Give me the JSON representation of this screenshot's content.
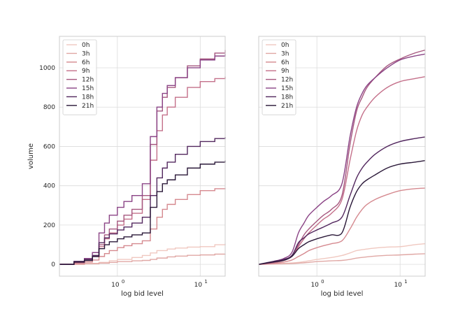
{
  "chart_data": [
    {
      "type": "line",
      "drawstyle": "steps",
      "xlabel": "log bid level",
      "ylabel": "volume",
      "xscale": "log",
      "xlim": [
        0.2,
        20
      ],
      "ylim": [
        -60,
        1160
      ],
      "xticks": [
        {
          "base": "10",
          "exp": "0",
          "value": 1
        },
        {
          "base": "10",
          "exp": "1",
          "value": 10
        }
      ],
      "yticks": [
        0,
        200,
        400,
        600,
        800,
        1000
      ],
      "grid": true,
      "legend_position": "top-left",
      "series": [
        {
          "name": "0h",
          "color": "#f0c8c0",
          "x": [
            0.2,
            0.4,
            0.6,
            0.8,
            1.0,
            1.5,
            2.0,
            2.5,
            3.0,
            4.0,
            5.0,
            7.0,
            10.0,
            15.0,
            20.0
          ],
          "y": [
            0,
            5,
            10,
            18,
            25,
            35,
            45,
            58,
            70,
            78,
            83,
            88,
            90,
            100,
            105
          ]
        },
        {
          "name": "3h",
          "color": "#e0a8a5",
          "x": [
            0.2,
            0.4,
            0.6,
            0.8,
            1.0,
            1.5,
            2.0,
            2.5,
            3.0,
            4.0,
            5.0,
            7.0,
            10.0,
            15.0,
            20.0
          ],
          "y": [
            0,
            3,
            6,
            10,
            14,
            18,
            20,
            25,
            32,
            38,
            42,
            46,
            48,
            52,
            54
          ]
        },
        {
          "name": "6h",
          "color": "#d5898f",
          "x": [
            0.2,
            0.3,
            0.4,
            0.5,
            0.6,
            0.7,
            0.8,
            1.0,
            1.2,
            1.5,
            2.0,
            2.5,
            3.0,
            3.5,
            4.0,
            5.0,
            7.0,
            10.0,
            15.0,
            20.0
          ],
          "y": [
            0,
            5,
            12,
            22,
            40,
            55,
            70,
            85,
            95,
            105,
            120,
            180,
            240,
            280,
            305,
            330,
            355,
            375,
            385,
            388
          ]
        },
        {
          "name": "9h",
          "color": "#c4708a",
          "x": [
            0.2,
            0.3,
            0.4,
            0.5,
            0.6,
            0.7,
            0.8,
            1.0,
            1.2,
            1.5,
            2.0,
            2.5,
            3.0,
            3.5,
            4.0,
            5.0,
            7.0,
            10.0,
            15.0,
            20.0
          ],
          "y": [
            0,
            8,
            20,
            40,
            90,
            130,
            160,
            200,
            230,
            260,
            330,
            530,
            680,
            760,
            800,
            850,
            900,
            930,
            945,
            955
          ]
        },
        {
          "name": "12h",
          "color": "#a6577f",
          "x": [
            0.2,
            0.3,
            0.4,
            0.5,
            0.6,
            0.7,
            0.8,
            1.0,
            1.2,
            1.5,
            2.0,
            2.5,
            3.0,
            3.5,
            4.0,
            5.0,
            7.0,
            10.0,
            15.0,
            20.0
          ],
          "y": [
            0,
            10,
            22,
            45,
            100,
            150,
            180,
            220,
            250,
            280,
            350,
            610,
            780,
            850,
            900,
            950,
            1010,
            1045,
            1075,
            1090
          ]
        },
        {
          "name": "15h",
          "color": "#8a4385",
          "x": [
            0.2,
            0.3,
            0.4,
            0.5,
            0.6,
            0.7,
            0.8,
            1.0,
            1.2,
            1.5,
            2.0,
            2.5,
            3.0,
            3.5,
            4.0,
            5.0,
            7.0,
            10.0,
            15.0,
            20.0
          ],
          "y": [
            0,
            15,
            30,
            60,
            160,
            210,
            250,
            290,
            320,
            350,
            410,
            650,
            800,
            870,
            910,
            950,
            1000,
            1040,
            1060,
            1070
          ]
        },
        {
          "name": "18h",
          "color": "#52275e",
          "x": [
            0.2,
            0.3,
            0.4,
            0.5,
            0.6,
            0.7,
            0.8,
            1.0,
            1.2,
            1.5,
            2.0,
            2.5,
            3.0,
            3.5,
            4.0,
            5.0,
            7.0,
            10.0,
            15.0,
            20.0
          ],
          "y": [
            0,
            15,
            25,
            45,
            110,
            135,
            155,
            175,
            190,
            210,
            240,
            350,
            440,
            490,
            520,
            560,
            600,
            625,
            640,
            648
          ]
        },
        {
          "name": "21h",
          "color": "#2a1838",
          "x": [
            0.2,
            0.3,
            0.4,
            0.5,
            0.6,
            0.7,
            0.8,
            1.0,
            1.2,
            1.5,
            2.0,
            2.5,
            3.0,
            3.5,
            4.0,
            5.0,
            7.0,
            10.0,
            15.0,
            20.0
          ],
          "y": [
            0,
            12,
            20,
            40,
            80,
            100,
            115,
            130,
            140,
            150,
            160,
            290,
            370,
            410,
            430,
            455,
            490,
            510,
            520,
            528
          ]
        }
      ]
    },
    {
      "type": "line",
      "drawstyle": "smooth",
      "xlabel": "log bid level",
      "ylabel": "",
      "xscale": "log",
      "xlim": [
        0.2,
        20
      ],
      "ylim": [
        -60,
        1160
      ],
      "xticks": [
        {
          "base": "10",
          "exp": "0",
          "value": 1
        },
        {
          "base": "10",
          "exp": "1",
          "value": 10
        }
      ],
      "yticks": [
        0,
        200,
        400,
        600,
        800,
        1000
      ],
      "show_yticklabels": false,
      "grid": true,
      "legend_position": "top-left",
      "series_ref": "same as left panel"
    }
  ]
}
